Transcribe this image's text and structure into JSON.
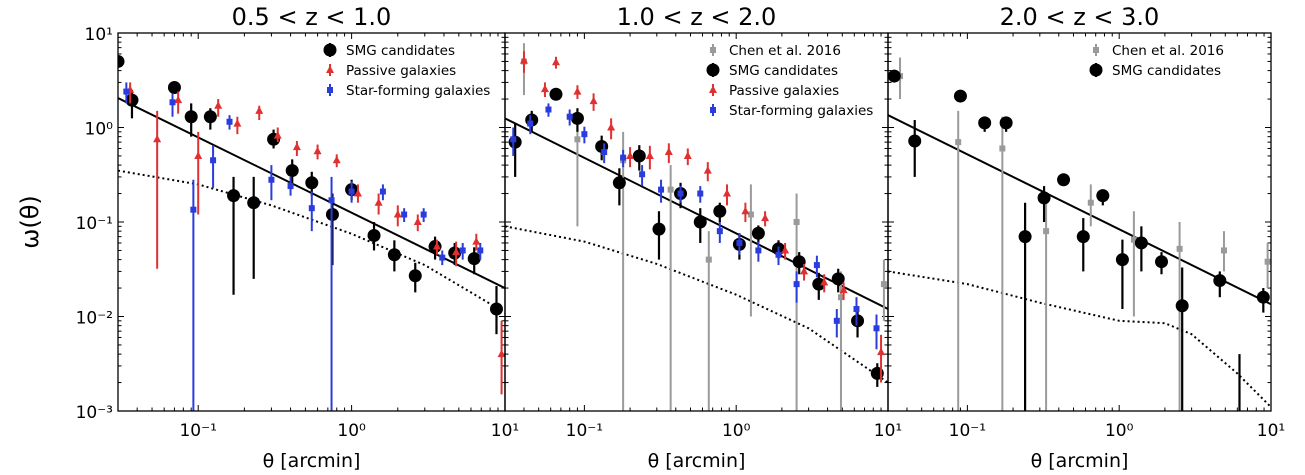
{
  "figure": {
    "ylabel": "ω(θ)",
    "xlabel": "θ [arcmin]",
    "y_tick_labels": [
      "10⁻³",
      "10⁻²",
      "10⁻¹",
      "10⁰",
      "10¹"
    ],
    "x_tick_labels": [
      "10⁻¹",
      "10⁰",
      "10¹"
    ]
  },
  "colors": {
    "smg": "#000000",
    "passive": "#e03030",
    "starforming": "#2a3cdc",
    "chen": "#9a9a9a",
    "fit": "#000000"
  },
  "chart_data": [
    {
      "type": "scatter",
      "title": "0.5 < z < 1.0",
      "xlabel": "θ [arcmin]",
      "ylabel": "ω(θ)",
      "xscale": "log",
      "yscale": "log",
      "xlim": [
        0.03,
        10
      ],
      "ylim": [
        0.001,
        10
      ],
      "legend_position": "top-right",
      "legend": [
        "SMG candidates",
        "Passive galaxies",
        "Star-forming galaxies"
      ],
      "fit_line": {
        "x": [
          0.03,
          10
        ],
        "y": [
          2.05,
          0.02
        ]
      },
      "model_curve": {
        "x": [
          0.03,
          0.1,
          0.3,
          1,
          3,
          10
        ],
        "y": [
          0.35,
          0.25,
          0.15,
          0.075,
          0.035,
          0.011
        ]
      },
      "series": [
        {
          "name": "SMG candidates",
          "marker": "circle",
          "color": "#000000",
          "x": [
            0.03,
            0.037,
            0.07,
            0.09,
            0.12,
            0.17,
            0.23,
            0.31,
            0.41,
            0.55,
            0.75,
            1.0,
            1.4,
            1.9,
            2.6,
            3.5,
            4.7,
            6.3,
            8.8
          ],
          "y": [
            5.0,
            1.95,
            2.65,
            1.3,
            1.3,
            0.19,
            0.16,
            0.75,
            0.35,
            0.26,
            0.12,
            0.22,
            0.072,
            0.045,
            0.027,
            0.055,
            0.047,
            0.041,
            0.012
          ],
          "ylo": [
            null,
            1.25,
            null,
            0.8,
            0.95,
            0.017,
            0.025,
            0.6,
            0.25,
            0.19,
            0.035,
            0.17,
            0.05,
            0.03,
            0.018,
            0.04,
            0.035,
            0.028,
            0.0065
          ],
          "yhi": [
            null,
            2.5,
            null,
            1.8,
            1.6,
            0.3,
            0.3,
            0.95,
            0.46,
            0.34,
            0.2,
            0.28,
            0.1,
            0.064,
            0.037,
            0.07,
            0.06,
            0.054,
            0.021
          ]
        },
        {
          "name": "Passive galaxies",
          "marker": "triangle",
          "color": "#e03030",
          "x": [
            0.036,
            0.054,
            0.074,
            0.1,
            0.135,
            0.18,
            0.25,
            0.33,
            0.44,
            0.6,
            0.8,
            1.1,
            1.5,
            2.0,
            2.7,
            3.6,
            4.8,
            6.5,
            9.5
          ],
          "y": [
            2.5,
            0.75,
            1.95,
            0.5,
            1.7,
            1.1,
            1.5,
            0.82,
            0.62,
            0.56,
            0.45,
            0.2,
            0.16,
            0.12,
            0.1,
            0.055,
            0.048,
            0.062,
            0.004
          ],
          "ylo": [
            1.8,
            0.032,
            1.4,
            0.12,
            1.3,
            0.85,
            1.2,
            0.7,
            0.5,
            0.46,
            0.38,
            0.16,
            0.12,
            0.09,
            0.08,
            0.045,
            0.034,
            0.05,
            0.0015
          ],
          "yhi": [
            3.0,
            1.5,
            2.4,
            0.9,
            2.0,
            1.3,
            1.7,
            1.0,
            0.72,
            0.66,
            0.52,
            0.25,
            0.2,
            0.15,
            0.12,
            0.065,
            0.062,
            0.075,
            0.009
          ]
        },
        {
          "name": "Star-forming galaxies",
          "marker": "square",
          "color": "#2a3cdc",
          "x": [
            0.034,
            0.068,
            0.093,
            0.125,
            0.16,
            0.3,
            0.4,
            0.55,
            0.74,
            1.0,
            1.6,
            2.2,
            2.95,
            3.9,
            5.3,
            6.9
          ],
          "y": [
            2.4,
            1.85,
            0.135,
            0.45,
            1.15,
            0.28,
            0.24,
            0.14,
            0.17,
            0.21,
            0.21,
            0.12,
            0.12,
            0.042,
            0.05,
            0.05
          ],
          "ylo": [
            1.8,
            1.3,
            0.001,
            0.23,
            0.95,
            0.17,
            0.19,
            0.08,
            0.001,
            0.16,
            0.17,
            0.1,
            0.1,
            0.035,
            0.04,
            0.04
          ],
          "yhi": [
            3.0,
            2.3,
            0.28,
            0.65,
            1.35,
            0.4,
            0.3,
            0.21,
            0.3,
            0.27,
            0.25,
            0.14,
            0.14,
            0.05,
            0.06,
            0.06
          ]
        }
      ]
    },
    {
      "type": "scatter",
      "title": "1.0 < z < 2.0",
      "xlabel": "θ [arcmin]",
      "xscale": "log",
      "yscale": "log",
      "xlim": [
        0.03,
        10
      ],
      "ylim": [
        0.001,
        10
      ],
      "legend_position": "top-right",
      "legend": [
        "Chen et al. 2016",
        "SMG candidates",
        "Passive galaxies",
        "Star-forming galaxies"
      ],
      "fit_line": {
        "x": [
          0.03,
          10
        ],
        "y": [
          1.25,
          0.012
        ]
      },
      "model_curve": {
        "x": [
          0.03,
          0.1,
          0.3,
          1,
          3,
          10
        ],
        "y": [
          0.09,
          0.062,
          0.036,
          0.017,
          0.0075,
          0.002
        ]
      },
      "series": [
        {
          "name": "Chen et al. 2016",
          "marker": "square",
          "color": "#9a9a9a",
          "x": [
            0.04,
            0.09,
            0.18,
            0.37,
            0.66,
            1.25,
            2.5,
            4.9,
            9.4
          ],
          "y": [
            5.0,
            0.75,
            0.45,
            0.22,
            0.04,
            0.12,
            0.1,
            0.016,
            0.022
          ],
          "ylo": [
            2.2,
            0.09,
            0.001,
            0.001,
            0.001,
            0.01,
            0.001,
            0.001,
            0.009
          ],
          "yhi": [
            7.8,
            1.4,
            0.9,
            0.4,
            0.08,
            0.25,
            0.2,
            0.03,
            0.04
          ]
        },
        {
          "name": "SMG candidates",
          "marker": "circle",
          "color": "#000000",
          "x": [
            0.035,
            0.045,
            0.065,
            0.09,
            0.13,
            0.17,
            0.23,
            0.31,
            0.43,
            0.58,
            0.78,
            1.05,
            1.4,
            1.9,
            2.6,
            3.5,
            4.7,
            6.3,
            8.5
          ],
          "y": [
            0.7,
            1.2,
            2.25,
            1.25,
            0.63,
            0.26,
            0.5,
            0.084,
            0.2,
            0.1,
            0.13,
            0.058,
            0.076,
            0.052,
            0.038,
            0.022,
            0.025,
            0.009,
            0.0025
          ],
          "ylo": [
            0.3,
            0.9,
            2.0,
            0.9,
            0.45,
            0.15,
            0.35,
            0.04,
            0.14,
            0.06,
            0.1,
            0.04,
            0.06,
            0.04,
            0.028,
            0.015,
            0.018,
            0.006,
            0.0018
          ],
          "yhi": [
            1.1,
            1.5,
            2.5,
            1.6,
            0.82,
            0.37,
            0.65,
            0.13,
            0.26,
            0.14,
            0.16,
            0.076,
            0.092,
            0.064,
            0.048,
            0.029,
            0.032,
            0.012,
            0.0032
          ]
        },
        {
          "name": "Passive galaxies",
          "marker": "triangle",
          "color": "#e03030",
          "x": [
            0.04,
            0.055,
            0.065,
            0.09,
            0.115,
            0.15,
            0.2,
            0.27,
            0.36,
            0.48,
            0.65,
            0.87,
            1.15,
            1.55,
            2.1,
            2.8,
            3.8,
            5.1,
            9.0
          ],
          "y": [
            5.1,
            2.55,
            4.9,
            2.4,
            1.9,
            1.0,
            0.5,
            0.5,
            0.55,
            0.5,
            0.35,
            0.2,
            0.13,
            0.11,
            0.05,
            0.03,
            0.023,
            0.019,
            0.0042
          ],
          "ylo": [
            3.8,
            2.1,
            4.2,
            2.0,
            1.5,
            0.75,
            0.38,
            0.36,
            0.42,
            0.4,
            0.27,
            0.15,
            0.1,
            0.09,
            0.04,
            0.024,
            0.018,
            0.015,
            0.002
          ],
          "yhi": [
            6.4,
            3.0,
            5.6,
            2.8,
            2.3,
            1.25,
            0.62,
            0.64,
            0.68,
            0.6,
            0.43,
            0.25,
            0.16,
            0.13,
            0.06,
            0.036,
            0.028,
            0.023,
            0.0064
          ]
        },
        {
          "name": "Star-forming galaxies",
          "marker": "square",
          "color": "#2a3cdc",
          "x": [
            0.034,
            0.044,
            0.058,
            0.08,
            0.1,
            0.135,
            0.18,
            0.24,
            0.32,
            0.43,
            0.58,
            0.78,
            1.05,
            1.4,
            1.9,
            2.5,
            3.4,
            4.6,
            6.2,
            8.4
          ],
          "y": [
            0.75,
            1.1,
            1.55,
            1.3,
            0.85,
            0.55,
            0.48,
            0.32,
            0.22,
            0.2,
            0.2,
            0.08,
            0.06,
            0.05,
            0.045,
            0.022,
            0.035,
            0.009,
            0.012,
            0.0075
          ],
          "ylo": [
            0.5,
            0.85,
            1.3,
            1.05,
            0.68,
            0.42,
            0.38,
            0.24,
            0.16,
            0.16,
            0.16,
            0.06,
            0.045,
            0.038,
            0.035,
            0.014,
            0.026,
            0.006,
            0.008,
            0.0045
          ],
          "yhi": [
            1.0,
            1.35,
            1.8,
            1.55,
            1.02,
            0.68,
            0.58,
            0.4,
            0.28,
            0.24,
            0.24,
            0.1,
            0.075,
            0.062,
            0.055,
            0.03,
            0.044,
            0.012,
            0.016,
            0.0105
          ]
        }
      ]
    },
    {
      "type": "scatter",
      "title": "2.0 < z < 3.0",
      "xlabel": "θ [arcmin]",
      "xscale": "log",
      "yscale": "log",
      "xlim": [
        0.03,
        10
      ],
      "ylim": [
        0.001,
        10
      ],
      "legend_position": "top-right",
      "legend": [
        "Chen et al. 2016",
        "SMG candidates"
      ],
      "fit_line": {
        "x": [
          0.03,
          10
        ],
        "y": [
          1.35,
          0.0135
        ]
      },
      "model_curve": {
        "x": [
          0.03,
          0.1,
          0.3,
          1,
          2,
          3,
          6,
          10
        ],
        "y": [
          0.03,
          0.022,
          0.014,
          0.009,
          0.0085,
          0.0065,
          0.0025,
          0.0011
        ]
      },
      "series": [
        {
          "name": "Chen et al. 2016",
          "marker": "square",
          "color": "#9a9a9a",
          "x": [
            0.036,
            0.087,
            0.17,
            0.33,
            0.65,
            1.25,
            2.5,
            4.9,
            9.5
          ],
          "y": [
            3.5,
            0.7,
            0.6,
            0.08,
            0.16,
            0.065,
            0.052,
            0.05,
            0.038
          ],
          "ylo": [
            2.0,
            0.001,
            0.001,
            0.001,
            0.09,
            0.01,
            0.001,
            0.03,
            0.02
          ],
          "yhi": [
            5.5,
            1.5,
            1.3,
            0.16,
            0.25,
            0.13,
            0.1,
            0.08,
            0.06
          ]
        },
        {
          "name": "SMG candidates",
          "marker": "circle",
          "color": "#000000",
          "x": [
            0.033,
            0.045,
            0.09,
            0.13,
            0.18,
            0.24,
            0.32,
            0.43,
            0.58,
            0.78,
            1.05,
            1.4,
            1.9,
            2.6,
            4.6,
            6.2,
            8.9
          ],
          "y": [
            3.5,
            0.72,
            2.15,
            1.12,
            1.12,
            0.07,
            0.18,
            0.28,
            0.07,
            0.19,
            0.04,
            0.06,
            0.038,
            0.013,
            0.024,
            0.001,
            0.016
          ],
          "ylo": [
            3.1,
            0.3,
            2.0,
            0.9,
            0.9,
            0.001,
            0.1,
            0.25,
            0.03,
            0.15,
            0.012,
            0.03,
            0.028,
            0.001,
            0.016,
            0.001,
            0.011
          ],
          "yhi": [
            3.9,
            1.2,
            2.3,
            1.3,
            1.3,
            0.16,
            0.24,
            0.32,
            0.11,
            0.22,
            0.065,
            0.09,
            0.048,
            0.033,
            0.03,
            0.004,
            0.02
          ]
        }
      ]
    }
  ]
}
